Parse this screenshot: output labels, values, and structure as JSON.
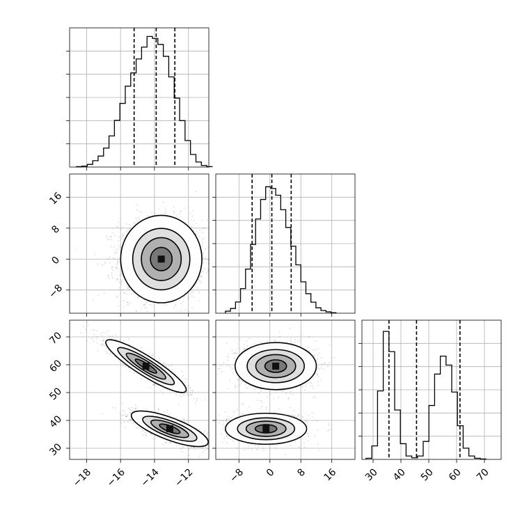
{
  "chart_data": {
    "type": "corner",
    "grid": true,
    "parameters": [
      {
        "index": 0,
        "range": [
          -19,
          -10.8
        ],
        "ticks": [
          -18,
          -16,
          -14,
          -12
        ],
        "quantiles": [
          -15.2,
          -13.9,
          -12.8
        ]
      },
      {
        "index": 1,
        "range": [
          -14,
          22
        ],
        "ticks": [
          -8,
          0,
          8,
          16
        ],
        "quantiles": [
          -4.6,
          0.5,
          5.5
        ]
      },
      {
        "index": 2,
        "range": [
          26,
          76
        ],
        "ticks": [
          30,
          40,
          50,
          60,
          70
        ],
        "quantiles": [
          35.7,
          45.6,
          61.2
        ]
      }
    ],
    "histograms": [
      {
        "param": 0,
        "edges_start": -18.6,
        "bin_width": 0.32,
        "counts": [
          0.3,
          0.7,
          2.0,
          4.8,
          8.3,
          14.3,
          23.5,
          35.2,
          48.0,
          61.0,
          71.0,
          81.5,
          90.5,
          98.5,
          97.0,
          92.5,
          83.5,
          68.0,
          52.0,
          35.0,
          20.0,
          9.5,
          3.8,
          1.2,
          0.3
        ],
        "ymax": 105
      },
      {
        "param": 1,
        "edges_start": -11.5,
        "bin_width": 1.3,
        "counts": [
          1.2,
          2.8,
          6.6,
          14.5,
          26.0,
          40.5,
          55.5,
          67.0,
          74.5,
          73.5,
          69.5,
          61.0,
          50.5,
          39.5,
          28.5,
          18.5,
          11.5,
          6.5,
          3.2,
          1.6,
          0.8,
          0.3
        ],
        "ymax": 82
      },
      {
        "param": 2,
        "edges_start": 27.5,
        "bin_width": 2.05,
        "counts": [
          0.5,
          6.0,
          30.5,
          57.0,
          48.0,
          22.0,
          7.0,
          1.5,
          0.7,
          1.5,
          8.0,
          24.0,
          38.0,
          46.0,
          42.0,
          30.0,
          15.0,
          5.0,
          1.5,
          0.5,
          0.2
        ],
        "ymax": 62
      }
    ],
    "scatter_2d": [
      {
        "x": 0,
        "y": 1,
        "clusters": [
          {
            "cx": -13.6,
            "cy": 0,
            "sx": 1.25,
            "sy": 5.1,
            "rho": 0,
            "n": 2200
          }
        ]
      },
      {
        "x": 0,
        "y": 2,
        "clusters": [
          {
            "cx": -14.5,
            "cy": 59.5,
            "sx": 1.15,
            "sy": 4.6,
            "rho": -0.9,
            "n": 1100
          },
          {
            "cx": -13.1,
            "cy": 37.0,
            "sx": 1.1,
            "sy": 3.1,
            "rho": -0.75,
            "n": 1100
          }
        ]
      },
      {
        "x": 1,
        "y": 2,
        "clusters": [
          {
            "cx": 1.5,
            "cy": 59.5,
            "sx": 5.1,
            "sy": 4.1,
            "rho": 0,
            "n": 1100
          },
          {
            "cx": -1.0,
            "cy": 37.0,
            "sx": 5.1,
            "sy": 2.7,
            "rho": 0,
            "n": 1100
          }
        ]
      }
    ]
  }
}
